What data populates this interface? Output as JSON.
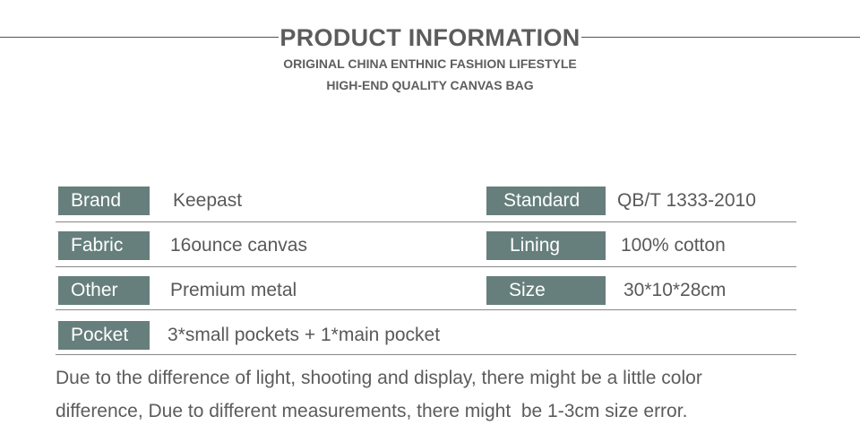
{
  "header": {
    "title": "PRODUCT INFORMATION",
    "subtitle_1": "ORIGINAL CHINA ENTHNIC FASHION LIFESTYLE",
    "subtitle_2": "HIGH-END QUALITY CANVAS BAG"
  },
  "specs": {
    "brand": {
      "label": "Brand",
      "value": "Keepast"
    },
    "standard": {
      "label": "Standard",
      "value": "QB/T 1333-2010"
    },
    "fabric": {
      "label": "Fabric",
      "value": "16ounce canvas"
    },
    "lining": {
      "label": "Lining",
      "value": "100% cotton"
    },
    "other": {
      "label": "Other",
      "value": "Premium metal"
    },
    "size": {
      "label": "Size",
      "value": "30*10*28cm"
    },
    "pocket": {
      "label": "Pocket",
      "value": "3*small pockets + 1*main pocket"
    }
  },
  "note": {
    "line_1": "Due to the difference of light, shooting and display, there might be a little color",
    "line_2": "difference, Due to different measurements, there might  be 1-3cm size error."
  },
  "colors": {
    "label_background": "#667f7c",
    "text": "#595959"
  }
}
